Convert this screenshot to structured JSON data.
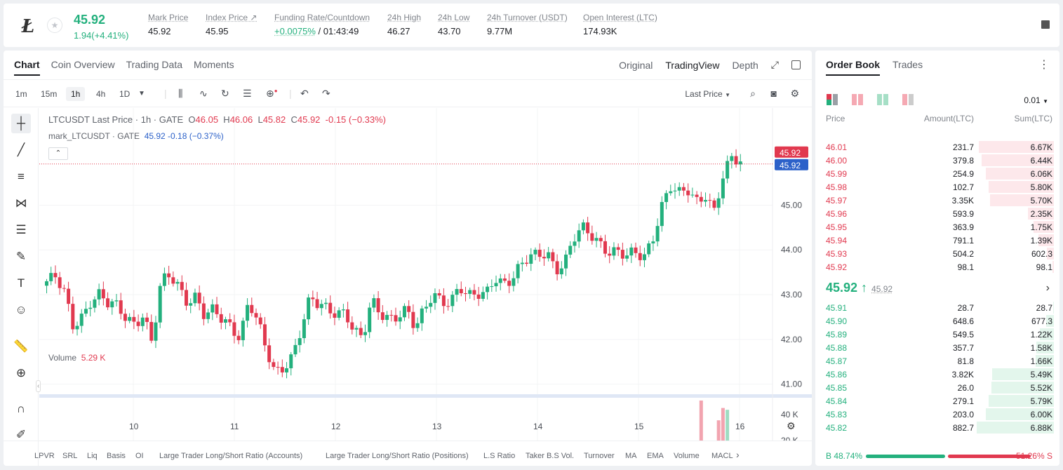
{
  "ticker": {
    "coin_icon": "litecoin-icon",
    "last_price": "45.92",
    "change": "1.94(+4.41%)",
    "stats": [
      {
        "label": "Mark Price",
        "value": "45.92"
      },
      {
        "label": "Index Price ↗",
        "value": "45.95"
      },
      {
        "label": "Funding Rate/Countdown",
        "value_green": "+0.0075%",
        "value": " / 01:43:49"
      },
      {
        "label": "24h High",
        "value": "46.27"
      },
      {
        "label": "24h Low",
        "value": "43.70"
      },
      {
        "label": "24h Turnover (USDT)",
        "value": "9.77M"
      },
      {
        "label": "Open Interest (LTC)",
        "value": "174.93K"
      }
    ]
  },
  "chart_tabs": [
    "Chart",
    "Coin Overview",
    "Trading Data",
    "Moments"
  ],
  "view_tabs": [
    "Original",
    "TradingView",
    "Depth"
  ],
  "timeframes": [
    "1m",
    "15m",
    "1h",
    "4h",
    "1D"
  ],
  "last_price_select": "Last Price",
  "legend": {
    "symbol": "LTCUSDT Last Price · 1h · GATE",
    "o_label": "O",
    "o": "46.05",
    "h_label": "H",
    "h": "46.06",
    "l_label": "L",
    "l": "45.82",
    "c_label": "C",
    "c": "45.92",
    "chg": "-0.15 (−0.33%)",
    "mark_symbol": "mark_LTCUSDT · GATE",
    "mark_vals": "45.92 -0.18 (−0.37%)",
    "volume_label": "Volume",
    "volume_value": "5.29 K"
  },
  "chart_data": {
    "type": "candlestick",
    "price_axis_ticks": [
      "45.00",
      "44.00",
      "43.00",
      "42.00",
      "41.00"
    ],
    "price_labels": {
      "last": "45.92",
      "mark": "45.92"
    },
    "volume_axis_ticks": [
      "40 K",
      "20 K"
    ],
    "volume_label": "5.29 K",
    "x_ticks": [
      "10",
      "11",
      "12",
      "13",
      "14",
      "15",
      "16"
    ],
    "close_path": [
      43.3,
      43.35,
      43.0,
      42.3,
      42.55,
      42.9,
      43.0,
      42.75,
      42.7,
      42.5,
      42.4,
      42.6,
      41.9,
      43.2,
      43.4,
      43.2,
      42.9,
      43.0,
      42.5,
      42.6,
      42.4,
      42.3,
      42.1,
      42.9,
      42.4,
      41.7,
      41.2,
      41.4,
      41.7,
      42.3,
      42.9,
      42.7,
      42.65,
      42.6,
      42.7,
      42.2,
      42.0,
      42.8,
      42.55,
      42.5,
      42.6,
      42.7,
      42.2,
      42.6,
      43.0,
      42.9,
      42.9,
      43.2,
      42.9,
      42.95,
      43.0,
      43.45,
      43.3,
      43.35,
      43.6,
      43.8,
      43.9,
      44.0,
      43.6,
      43.7,
      44.2,
      44.45,
      44.35,
      44.2,
      44.0,
      43.95,
      43.8,
      43.9,
      43.85,
      44.3,
      45.0,
      45.4,
      45.2,
      45.3,
      45.1,
      45.3,
      44.9,
      45.6,
      46.0,
      45.92
    ],
    "volume": [
      3,
      4,
      7,
      4,
      3,
      4,
      5,
      4,
      3,
      3,
      5,
      4,
      8,
      7,
      5,
      4,
      4,
      5,
      3,
      4,
      3,
      4,
      5,
      10,
      9,
      8,
      7,
      9,
      6,
      5,
      5,
      4,
      4,
      3,
      4,
      4,
      5,
      4,
      3,
      3,
      4,
      4,
      6,
      5,
      5,
      4,
      3,
      4,
      6,
      8,
      5,
      4,
      3,
      4,
      3,
      4,
      5,
      4,
      3,
      3,
      3,
      4,
      3,
      4,
      3,
      4,
      3,
      3,
      4,
      5,
      6,
      7,
      4,
      3,
      4,
      6,
      9,
      40,
      14,
      5.29
    ]
  },
  "left_tools": [
    {
      "name": "crosshair-icon",
      "glyph": "┼"
    },
    {
      "name": "trendline-icon",
      "glyph": "╱"
    },
    {
      "name": "horizontal-lines-icon",
      "glyph": "≡"
    },
    {
      "name": "pattern-icon",
      "glyph": "⋈"
    },
    {
      "name": "fib-icon",
      "glyph": "☰"
    },
    {
      "name": "brush-icon",
      "glyph": "✎"
    },
    {
      "name": "text-icon",
      "glyph": "T"
    },
    {
      "name": "emoji-icon",
      "glyph": "☺"
    },
    {
      "name": "ruler-icon",
      "glyph": "📏"
    },
    {
      "name": "zoom-in-icon",
      "glyph": "⊕"
    },
    {
      "name": "magnet-icon",
      "glyph": "∩"
    },
    {
      "name": "pencil-lock-icon",
      "glyph": "✐"
    }
  ],
  "indicators": [
    "LPVR",
    "SRL",
    "Liq",
    "Basis",
    "OI",
    "Large Trader Long/Short Ratio (Accounts)",
    "Large Trader Long/Short Ratio (Positions)",
    "L.S Ratio",
    "Taker B.S Vol.",
    "Turnover",
    "MA",
    "EMA",
    "Volume",
    "MACL"
  ],
  "orderbook": {
    "tabs": [
      "Order Book",
      "Trades"
    ],
    "precision": "0.01",
    "headers": {
      "price": "Price",
      "amount": "Amount(LTC)",
      "sum": "Sum(LTC)"
    },
    "asks": [
      {
        "price": "46.01",
        "amount": "231.7",
        "sum": "6.67K",
        "depth": 0.97
      },
      {
        "price": "46.00",
        "amount": "379.8",
        "sum": "6.44K",
        "depth": 0.94
      },
      {
        "price": "45.99",
        "amount": "254.9",
        "sum": "6.06K",
        "depth": 0.88
      },
      {
        "price": "45.98",
        "amount": "102.7",
        "sum": "5.80K",
        "depth": 0.85
      },
      {
        "price": "45.97",
        "amount": "3.35K",
        "sum": "5.70K",
        "depth": 0.83
      },
      {
        "price": "45.96",
        "amount": "593.9",
        "sum": "2.35K",
        "depth": 0.34
      },
      {
        "price": "45.95",
        "amount": "363.9",
        "sum": "1.75K",
        "depth": 0.26
      },
      {
        "price": "45.94",
        "amount": "791.1",
        "sum": "1.39K",
        "depth": 0.2
      },
      {
        "price": "45.93",
        "amount": "504.2",
        "sum": "602.3",
        "depth": 0.09
      },
      {
        "price": "45.92",
        "amount": "98.1",
        "sum": "98.1",
        "depth": 0.02
      }
    ],
    "mid_price": "45.92 ↑",
    "mid_mark": "45.92",
    "bids": [
      {
        "price": "45.91",
        "amount": "28.7",
        "sum": "28.7",
        "depth": 0.01
      },
      {
        "price": "45.90",
        "amount": "648.6",
        "sum": "677.3",
        "depth": 0.1
      },
      {
        "price": "45.89",
        "amount": "549.5",
        "sum": "1.22K",
        "depth": 0.18
      },
      {
        "price": "45.88",
        "amount": "357.7",
        "sum": "1.58K",
        "depth": 0.23
      },
      {
        "price": "45.87",
        "amount": "81.8",
        "sum": "1.66K",
        "depth": 0.24
      },
      {
        "price": "45.86",
        "amount": "3.82K",
        "sum": "5.49K",
        "depth": 0.8
      },
      {
        "price": "45.85",
        "amount": "26.0",
        "sum": "5.52K",
        "depth": 0.81
      },
      {
        "price": "45.84",
        "amount": "279.1",
        "sum": "5.79K",
        "depth": 0.85
      },
      {
        "price": "45.83",
        "amount": "203.0",
        "sum": "6.00K",
        "depth": 0.88
      },
      {
        "price": "45.82",
        "amount": "882.7",
        "sum": "6.88K",
        "depth": 1.0
      }
    ],
    "ratio_buy": "B 48.74%",
    "ratio_sell": "51.26% S",
    "buy_fraction": 0.4874
  },
  "colors": {
    "up": "#23b07d",
    "down": "#e1394f",
    "mark": "#2c61c9"
  }
}
